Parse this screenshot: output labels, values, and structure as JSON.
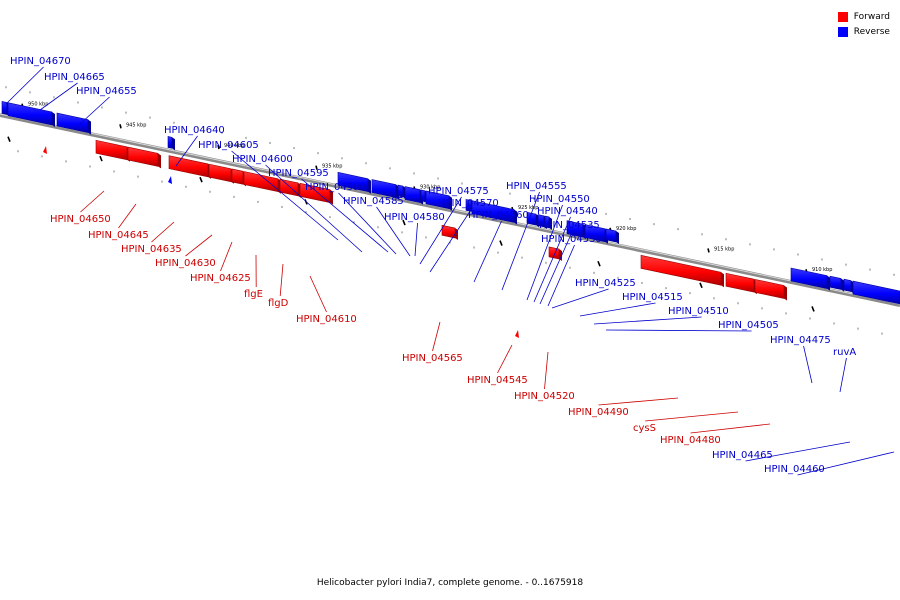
{
  "legend": {
    "forward_label": "Forward",
    "reverse_label": "Reverse",
    "forward_color": "#ff0000",
    "reverse_color": "#0000ff"
  },
  "caption": "Helicobacter pylori India7, complete genome. - 0..1675918",
  "ticks": [
    "950 kbp",
    "945 kbp",
    "940 kbp",
    "935 kbp",
    "930 kbp",
    "925 kbp",
    "920 kbp",
    "915 kbp",
    "910 kbp"
  ],
  "reverse_genes": [
    "HPIN_04670",
    "HPIN_04665",
    "HPIN_04655",
    "HPIN_04640",
    "HPIN_04605",
    "HPIN_04600",
    "HPIN_04595",
    "HPIN_04590",
    "HPIN_04585",
    "HPIN_04580",
    "HPIN_04575",
    "HPIN_04570",
    "HPIN_04560",
    "HPIN_04555",
    "HPIN_04550",
    "HPIN_04540",
    "HPIN_04535",
    "HPIN_04530",
    "HPIN_04525",
    "HPIN_04515",
    "HPIN_04510",
    "HPIN_04505",
    "HPIN_04475",
    "ruvA",
    "HPIN_04465",
    "HPIN_04460"
  ],
  "forward_genes": [
    "HPIN_04650",
    "HPIN_04645",
    "HPIN_04635",
    "HPIN_04630",
    "HPIN_04625",
    "flgE",
    "flgD",
    "HPIN_04610",
    "HPIN_04565",
    "HPIN_04545",
    "HPIN_04520",
    "HPIN_04490",
    "cysS",
    "HPIN_04480"
  ]
}
